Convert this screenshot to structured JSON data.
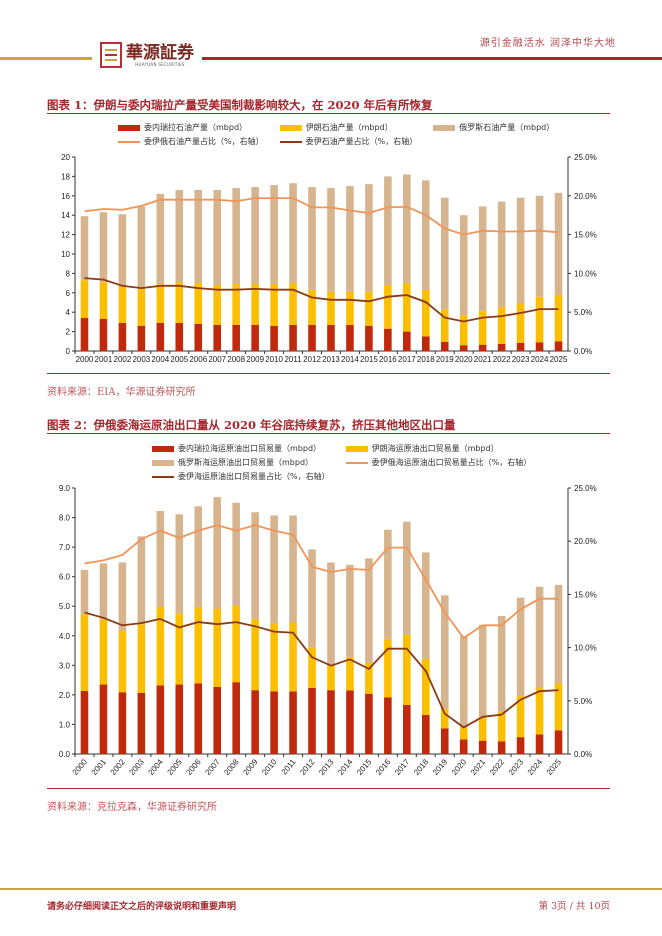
{
  "header": {
    "slogan": "源引金融活水 润泽中华大地",
    "logo_name": "華源証券",
    "logo_sub": "HUAYUAN SECURITIES"
  },
  "figures": [
    {
      "title": "图表 1：伊朗与委内瑞拉产量受美国制裁影响较大，在 2020 年后有所恢复",
      "source": "资料来源：EIA，华源证券研究所"
    },
    {
      "title": "图表 2：伊俄委海运原油出口量从 2020 年谷底持续复苏，挤压其他地区出口量",
      "source": "资料来源：克拉克森，华源证券研究所"
    }
  ],
  "colors": {
    "venezuela": "#c0290b",
    "iran": "#fcbf00",
    "russia": "#d6b48e",
    "share_all": "#f0955a",
    "share_vi": "#8b3a14"
  },
  "chart_data": [
    {
      "type": "bar",
      "stacked": true,
      "categories": [
        "2000",
        "2001",
        "2002",
        "2003",
        "2004",
        "2005",
        "2006",
        "2007",
        "2008",
        "2009",
        "2010",
        "2011",
        "2012",
        "2013",
        "2014",
        "2015",
        "2016",
        "2017",
        "2018",
        "2019",
        "2020",
        "2021",
        "2022",
        "2023",
        "2024",
        "2025"
      ],
      "ylim": [
        0,
        20
      ],
      "yticks": [
        0,
        2,
        4,
        6,
        8,
        10,
        12,
        14,
        16,
        18,
        20
      ],
      "ytick_decimals": 0,
      "y2lim": [
        0,
        25
      ],
      "y2ticks": [
        0,
        5,
        10,
        15,
        20,
        25
      ],
      "rotate_x": false,
      "series": [
        {
          "name": "委内瑞拉石油产量（mbpd）",
          "kind": "bar",
          "color_key": "venezuela",
          "values": [
            3.4,
            3.3,
            2.9,
            2.6,
            2.9,
            2.9,
            2.8,
            2.7,
            2.7,
            2.7,
            2.6,
            2.7,
            2.7,
            2.7,
            2.7,
            2.6,
            2.3,
            2.0,
            1.5,
            0.95,
            0.6,
            0.65,
            0.75,
            0.85,
            0.9,
            1.0
          ]
        },
        {
          "name": "伊朗石油产量（mbpd）",
          "kind": "bar",
          "color_key": "iran",
          "values": [
            3.9,
            3.8,
            3.7,
            3.8,
            4.0,
            4.2,
            4.2,
            4.1,
            4.2,
            4.2,
            4.3,
            4.3,
            3.6,
            3.4,
            3.4,
            3.5,
            4.5,
            5.0,
            4.8,
            3.35,
            3.1,
            3.45,
            3.75,
            4.05,
            4.7,
            4.8
          ]
        },
        {
          "name": "俄罗斯石油产量（mbpd）",
          "kind": "bar",
          "color_key": "russia",
          "values": [
            6.6,
            7.2,
            7.5,
            8.5,
            9.3,
            9.5,
            9.6,
            9.8,
            9.9,
            10.0,
            10.2,
            10.3,
            10.6,
            10.7,
            10.9,
            11.1,
            11.2,
            11.2,
            11.3,
            11.5,
            10.3,
            10.8,
            10.9,
            10.9,
            10.4,
            10.5
          ]
        },
        {
          "name": "委伊俄石油产量占比（%，右轴）",
          "kind": "line",
          "axis": "right",
          "color_key": "share_all",
          "values": [
            18.0,
            18.3,
            18.2,
            18.7,
            19.5,
            19.5,
            19.5,
            19.5,
            19.3,
            19.7,
            19.7,
            19.7,
            18.5,
            18.5,
            18.1,
            17.8,
            18.5,
            18.6,
            17.5,
            15.8,
            15.0,
            15.5,
            15.4,
            15.4,
            15.5,
            15.3
          ]
        },
        {
          "name": "委伊石油产量占比（%，右轴）",
          "kind": "line",
          "axis": "right",
          "color_key": "share_vi",
          "values": [
            9.4,
            9.2,
            8.4,
            8.1,
            8.4,
            8.4,
            8.1,
            7.9,
            7.9,
            8.0,
            7.9,
            7.9,
            6.9,
            6.6,
            6.6,
            6.4,
            7.0,
            7.2,
            6.3,
            4.3,
            3.8,
            4.3,
            4.5,
            4.9,
            5.4,
            5.4
          ]
        }
      ]
    },
    {
      "type": "bar",
      "stacked": true,
      "categories": [
        "2000",
        "2001",
        "2002",
        "2003",
        "2004",
        "2005",
        "2006",
        "2007",
        "2008",
        "2009",
        "2010",
        "2011",
        "2012",
        "2013",
        "2014",
        "2015",
        "2016",
        "2017",
        "2018",
        "2019",
        "2020",
        "2021",
        "2022",
        "2023",
        "2024",
        "2025"
      ],
      "ylim": [
        0,
        9
      ],
      "yticks": [
        0,
        1,
        2,
        3,
        4,
        5,
        6,
        7,
        8,
        9
      ],
      "ytick_decimals": 1,
      "y2lim": [
        0,
        25
      ],
      "y2ticks": [
        0,
        5,
        10,
        15,
        20,
        25
      ],
      "rotate_x": true,
      "series": [
        {
          "name": "委内瑞拉海运原油出口贸易量（mbpd）",
          "kind": "bar",
          "color_key": "venezuela",
          "values": [
            2.13,
            2.35,
            2.09,
            2.07,
            2.32,
            2.35,
            2.39,
            2.27,
            2.43,
            2.16,
            2.12,
            2.12,
            2.24,
            2.16,
            2.15,
            2.04,
            1.92,
            1.66,
            1.32,
            0.87,
            0.49,
            0.45,
            0.43,
            0.57,
            0.66,
            0.8
          ]
        },
        {
          "name": "伊朗海运原油出口贸易量（mbpd）",
          "kind": "bar",
          "color_key": "iran",
          "values": [
            2.6,
            2.21,
            2.07,
            2.32,
            2.66,
            2.41,
            2.59,
            2.65,
            2.58,
            2.4,
            2.3,
            2.33,
            1.36,
            0.84,
            1.14,
            1.05,
            1.98,
            2.37,
            1.9,
            0.65,
            0.39,
            0.8,
            1.0,
            1.39,
            1.61,
            1.59
          ]
        },
        {
          "name": "俄罗斯海运原油出口贸易量（mbpd）",
          "kind": "bar",
          "color_key": "russia",
          "values": [
            1.5,
            1.89,
            2.32,
            2.97,
            3.24,
            3.35,
            3.4,
            3.77,
            3.49,
            3.62,
            3.65,
            3.62,
            3.32,
            3.48,
            3.11,
            3.53,
            3.69,
            3.83,
            3.6,
            3.85,
            3.11,
            3.12,
            3.24,
            3.33,
            3.39,
            3.33
          ]
        },
        {
          "name": "委伊俄海运原油出口贸易量占比（%，右轴）",
          "kind": "line",
          "axis": "right",
          "color_key": "share_all",
          "values": [
            17.9,
            18.2,
            18.7,
            20.2,
            21.0,
            20.3,
            21.0,
            21.5,
            21.0,
            21.5,
            21.0,
            20.6,
            17.6,
            17.1,
            17.4,
            17.3,
            19.4,
            19.4,
            16.4,
            13.3,
            10.9,
            12.1,
            12.1,
            13.6,
            14.6,
            14.6
          ]
        },
        {
          "name": "委伊海运原油出口贸易量占比（%，右轴）",
          "kind": "line",
          "axis": "right",
          "color_key": "share_vi",
          "values": [
            13.3,
            12.8,
            12.1,
            12.3,
            12.7,
            11.9,
            12.4,
            12.2,
            12.4,
            12.0,
            11.5,
            11.4,
            9.1,
            8.3,
            8.9,
            8.0,
            9.9,
            9.9,
            7.8,
            3.8,
            2.5,
            3.5,
            3.7,
            5.1,
            5.9,
            6.0
          ]
        }
      ]
    }
  ],
  "footer": {
    "disclaimer": "请务必仔细阅读正文之后的评级说明和重要声明",
    "page": "第 3页 / 共 10页"
  }
}
